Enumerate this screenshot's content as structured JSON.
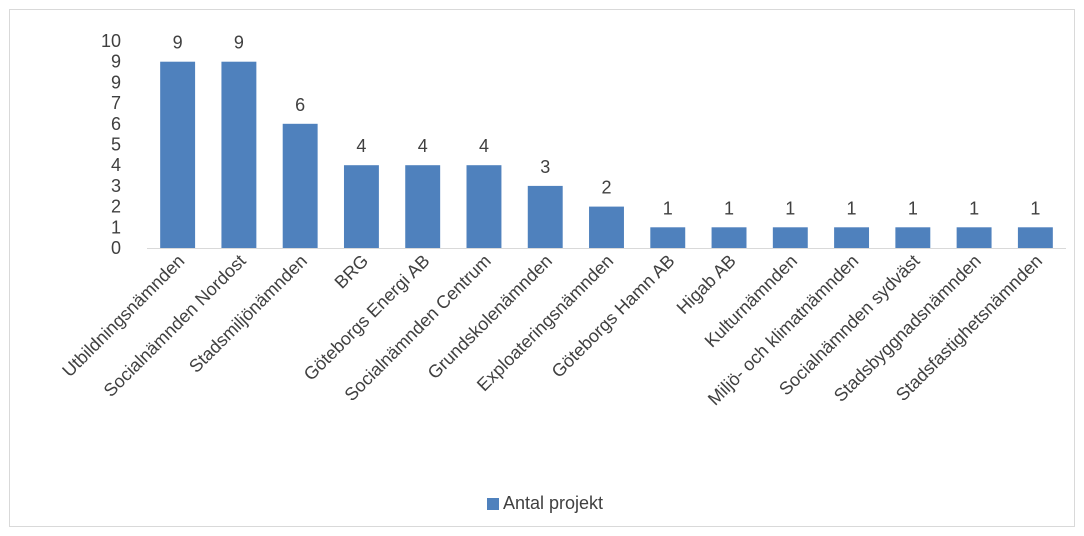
{
  "chart_data": {
    "type": "bar",
    "title": "",
    "xlabel": "",
    "ylabel": "",
    "categories": [
      "Utbildningsnämnden",
      "Socialnämnden Nordost",
      "Stadsmiljönämnden",
      "BRG",
      "Göteborgs Energi AB",
      "Socialnämnden Centrum",
      "Grundskolenämnden",
      "Exploateringsnämnden",
      "Göteborgs Hamn AB",
      "Higab AB",
      "Kulturnämnden",
      "Miljö- och klimatnämnden",
      "Socialnämnden sydväst",
      "Stadsbyggnadsnämnden",
      "Stadsfastighetsnämnden"
    ],
    "series": [
      {
        "name": "Antal projekt",
        "values": [
          9,
          9,
          6,
          4,
          4,
          4,
          3,
          2,
          1,
          1,
          1,
          1,
          1,
          1,
          1
        ],
        "color": "#4f81bd"
      }
    ],
    "y_ticks": [
      "0",
      "1",
      "2",
      "3",
      "4",
      "5",
      "6",
      "7",
      "9",
      "9",
      "10"
    ],
    "ylim": [
      0,
      10
    ],
    "grid": false,
    "legend_position": "bottom",
    "data_labels": true,
    "axis_color": "#d9d9d9"
  }
}
